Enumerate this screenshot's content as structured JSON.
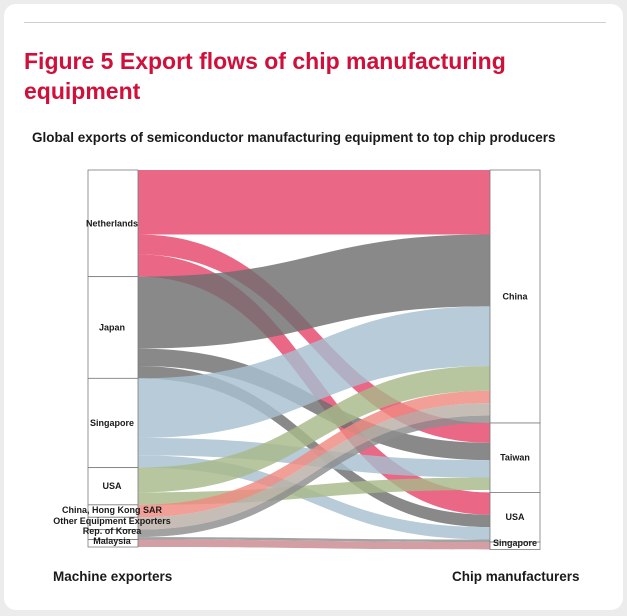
{
  "title": "Figure 5 Export flows of chip manufacturing equipment",
  "subtitle": "Global exports of semiconductor manufacturing equipment to top chip producers",
  "left_axis_label": "Machine exporters",
  "right_axis_label": "Chip manufacturers",
  "sources": [
    {
      "name": "Netherlands",
      "label": "Netherlands",
      "value": 21.5
    },
    {
      "name": "Japan",
      "label": "Japan",
      "value": 20.5
    },
    {
      "name": "Singapore",
      "label": "Singapore",
      "value": 18.0
    },
    {
      "name": "USA",
      "label": "USA",
      "value": 7.5
    },
    {
      "name": "China, Hong Kong SAR",
      "label": "China, Hong Kong SAR",
      "value": 2.5
    },
    {
      "name": "Other Equipment Exporters",
      "label": "Other Equipment Exporters",
      "value": 2.5
    },
    {
      "name": "Rep. of Korea",
      "label": "Rep. of Korea",
      "value": 2.0
    },
    {
      "name": "Malaysia",
      "label": "Malaysia",
      "value": 1.5
    }
  ],
  "targets": [
    {
      "name": "China",
      "label": "China",
      "value": 51.0
    },
    {
      "name": "Taiwan",
      "label": "Taiwan",
      "value": 14.0
    },
    {
      "name": "USA",
      "label": "USA",
      "value": 10.0
    },
    {
      "name": "Singapore",
      "label": "Singapore",
      "value": 1.5
    }
  ],
  "colors": {
    "Netherlands": "#e5466a",
    "Japan": "#6f6f6f",
    "Singapore": "#a7c0cf",
    "USA": "#a8b98a",
    "China, Hong Kong SAR": "#ef8a80",
    "Other Equipment Exporters": "#b9b0a6",
    "Rep. of Korea": "#8e8e8e",
    "Malaysia": "#c98a90"
  },
  "flows": [
    {
      "source": "Netherlands",
      "target": "China",
      "value": 13.0
    },
    {
      "source": "Netherlands",
      "target": "Taiwan",
      "value": 4.0
    },
    {
      "source": "Netherlands",
      "target": "USA",
      "value": 4.5
    },
    {
      "source": "Japan",
      "target": "China",
      "value": 14.5
    },
    {
      "source": "Japan",
      "target": "Taiwan",
      "value": 3.5
    },
    {
      "source": "Japan",
      "target": "USA",
      "value": 2.5
    },
    {
      "source": "Singapore",
      "target": "China",
      "value": 12.0
    },
    {
      "source": "Singapore",
      "target": "Taiwan",
      "value": 3.5
    },
    {
      "source": "Singapore",
      "target": "USA",
      "value": 2.5
    },
    {
      "source": "USA",
      "target": "China",
      "value": 5.0
    },
    {
      "source": "USA",
      "target": "Taiwan",
      "value": 2.5
    },
    {
      "source": "China, Hong Kong SAR",
      "target": "China",
      "value": 2.5
    },
    {
      "source": "Other Equipment Exporters",
      "target": "China",
      "value": 2.5
    },
    {
      "source": "Rep. of Korea",
      "target": "China",
      "value": 1.5
    },
    {
      "source": "Rep. of Korea",
      "target": "USA",
      "value": 0.5
    },
    {
      "source": "Malaysia",
      "target": "Singapore",
      "value": 1.5
    }
  ]
}
